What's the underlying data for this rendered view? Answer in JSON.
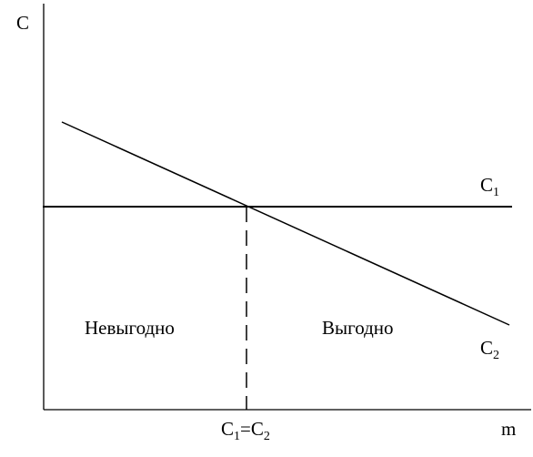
{
  "axes": {
    "y_label": "C",
    "x_label": "m"
  },
  "lines": {
    "c1": {
      "base": "C",
      "sub": "1"
    },
    "c2": {
      "base": "C",
      "sub": "2"
    }
  },
  "intersection_label": {
    "left_base": "C",
    "left_sub": "1",
    "eq": "=",
    "right_base": "C",
    "right_sub": "2"
  },
  "regions": {
    "left": "Невыгодно",
    "right": "Выгодно"
  },
  "colors": {
    "stroke": "#000000",
    "background": "#ffffff"
  }
}
